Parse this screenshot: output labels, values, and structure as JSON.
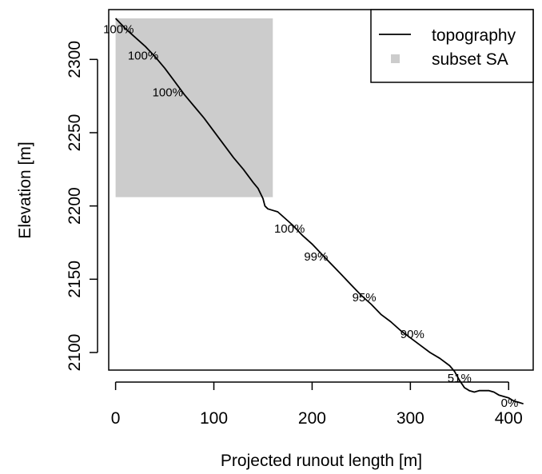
{
  "chart_data": {
    "type": "line",
    "title": "",
    "xlabel": "Projected runout length [m]",
    "ylabel": "Elevation [m]",
    "xlim": [
      -7,
      425
    ],
    "ylim": [
      2088,
      2334
    ],
    "x_ticks": [
      0,
      100,
      200,
      300,
      400
    ],
    "y_ticks": [
      2100,
      2150,
      2200,
      2250,
      2300
    ],
    "x_tick_labels": [
      "0",
      "100",
      "200",
      "300",
      "400"
    ],
    "y_tick_labels": [
      "2100",
      "2150",
      "2200",
      "2250",
      "2300"
    ],
    "grid": false,
    "legend": {
      "position": "top-right",
      "entries": [
        {
          "label": "topography",
          "symbol": "line",
          "color": "#000000"
        },
        {
          "label": "subset SA",
          "symbol": "square",
          "color": "#cccccc"
        }
      ]
    },
    "series": [
      {
        "name": "topography",
        "color": "#000000",
        "x": [
          0,
          10,
          20,
          30,
          40,
          50,
          60,
          70,
          80,
          90,
          100,
          110,
          120,
          130,
          140,
          145,
          150,
          152,
          155,
          160,
          165,
          170,
          180,
          190,
          200,
          210,
          220,
          230,
          240,
          250,
          260,
          270,
          280,
          290,
          300,
          310,
          320,
          330,
          340,
          345,
          350,
          355,
          360,
          365,
          370,
          375,
          380,
          385,
          390,
          395,
          400,
          405,
          410,
          415
        ],
        "y": [
          2328,
          2321,
          2315,
          2309,
          2302,
          2294,
          2285,
          2276,
          2268,
          2260,
          2251,
          2242,
          2233,
          2225,
          2216,
          2212,
          2205,
          2200,
          2198,
          2197,
          2196,
          2193,
          2187,
          2180,
          2174,
          2167,
          2160,
          2153,
          2146,
          2139,
          2133,
          2126,
          2121,
          2115,
          2110,
          2105,
          2100,
          2096,
          2091,
          2087,
          2081,
          2076,
          2074,
          2073,
          2074,
          2074,
          2074,
          2073,
          2071,
          2070,
          2069,
          2067,
          2066,
          2065
        ]
      }
    ],
    "shaded_region": {
      "label": "subset SA",
      "x": [
        0,
        160
      ],
      "y": [
        2206,
        2328
      ],
      "color": "#cccccc"
    },
    "annotations": [
      {
        "text": "100%",
        "x": 3,
        "y": 2320
      },
      {
        "text": "100%",
        "x": 28,
        "y": 2302
      },
      {
        "text": "100%",
        "x": 53,
        "y": 2277
      },
      {
        "text": "100%",
        "x": 177,
        "y": 2184
      },
      {
        "text": "99%",
        "x": 204,
        "y": 2165
      },
      {
        "text": "95%",
        "x": 253,
        "y": 2137
      },
      {
        "text": "90%",
        "x": 302,
        "y": 2112
      },
      {
        "text": "51%",
        "x": 350,
        "y": 2082
      },
      {
        "text": "0%",
        "x": 401,
        "y": 2065
      }
    ]
  }
}
